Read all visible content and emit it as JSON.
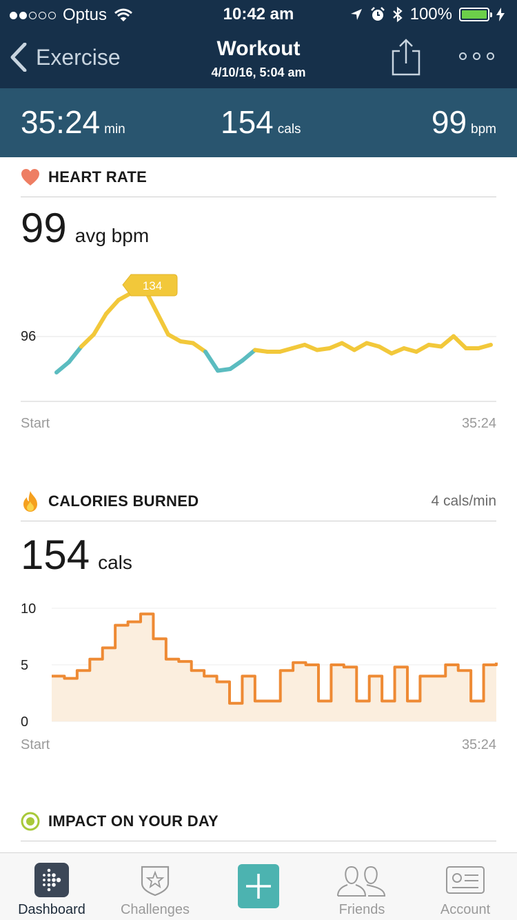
{
  "status_bar": {
    "carrier": "Optus",
    "time": "10:42 am",
    "battery": "100%"
  },
  "nav": {
    "back_label": "Exercise",
    "title": "Workout",
    "subtitle": "4/10/16, 5:04 am"
  },
  "summary": {
    "duration_value": "35:24",
    "duration_unit": "min",
    "calories_value": "154",
    "calories_unit": "cals",
    "heart_value": "99",
    "heart_unit": "bpm"
  },
  "heart_rate": {
    "title": "HEART RATE",
    "avg_value": "99",
    "avg_unit": "avg bpm",
    "peak_label": "134",
    "ref_label": "96",
    "x_start": "Start",
    "x_end": "35:24"
  },
  "calories": {
    "title": "CALORIES BURNED",
    "rate": "4 cals/min",
    "total_value": "154",
    "total_unit": "cals",
    "x_start": "Start",
    "x_end": "35:24"
  },
  "impact": {
    "title": "IMPACT ON YOUR DAY"
  },
  "tabs": [
    {
      "label": "Dashboard",
      "icon": "fitbit-dots-icon"
    },
    {
      "label": "Challenges",
      "icon": "star-badge-icon"
    },
    {
      "label": "",
      "icon": "plus-icon"
    },
    {
      "label": "Friends",
      "icon": "people-icon"
    },
    {
      "label": "Account",
      "icon": "id-card-icon"
    }
  ],
  "colors": {
    "header": "#16304a",
    "stats_bar": "#29556f",
    "hr_high": "#f2c83a",
    "hr_low": "#5bbcc0",
    "calories_line": "#ee8a34",
    "calories_fill": "#fbeede",
    "plus_button": "#4cb3b0"
  },
  "chart_data": [
    {
      "type": "line",
      "title": "HEART RATE",
      "x_range": [
        "Start",
        "35:24"
      ],
      "ylabel": "bpm",
      "reference_line": 96,
      "peak": 134,
      "average": 99,
      "x_minutes": [
        0,
        1,
        2,
        3,
        4,
        5,
        6,
        7,
        8,
        9,
        10,
        11,
        12,
        13,
        14,
        15,
        16,
        17,
        18,
        19,
        20,
        21,
        22,
        23,
        24,
        25,
        26,
        27,
        28,
        29,
        30,
        31,
        32,
        33,
        34,
        35
      ],
      "values": [
        84,
        90,
        99,
        106,
        118,
        126,
        130,
        134,
        120,
        106,
        102,
        101,
        96,
        85,
        86,
        91,
        97,
        96,
        96,
        98,
        100,
        97,
        98,
        101,
        97,
        101,
        99,
        95,
        98,
        96,
        100,
        99,
        105,
        98,
        98,
        100
      ],
      "series_colors": {
        "above_96": "#f2c83a",
        "below_96": "#5bbcc0"
      }
    },
    {
      "type": "area",
      "title": "CALORIES BURNED",
      "x_range": [
        "Start",
        "35:24"
      ],
      "ylim": [
        0,
        10
      ],
      "y_ticks": [
        0,
        5,
        10
      ],
      "x_minutes": [
        0,
        1,
        2,
        3,
        4,
        5,
        6,
        7,
        8,
        9,
        10,
        11,
        12,
        13,
        14,
        15,
        16,
        17,
        18,
        19,
        20,
        21,
        22,
        23,
        24,
        25,
        26,
        27,
        28,
        29,
        30,
        31,
        32,
        33,
        34,
        35
      ],
      "values": [
        4,
        3.8,
        4.5,
        5.5,
        6.5,
        8.5,
        8.8,
        9.5,
        7.3,
        5.5,
        5.3,
        4.5,
        4,
        3.5,
        1.6,
        4,
        1.8,
        1.8,
        4.5,
        5.2,
        5,
        1.8,
        5,
        4.8,
        1.8,
        4,
        1.8,
        4.8,
        1.8,
        4,
        4,
        5,
        4.5,
        1.8,
        5,
        5.2
      ]
    }
  ]
}
